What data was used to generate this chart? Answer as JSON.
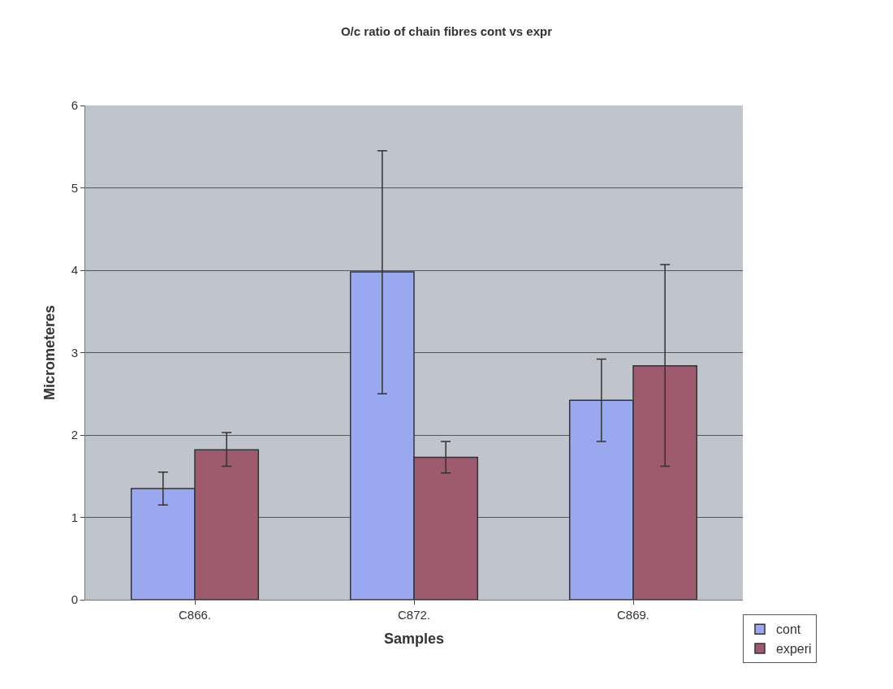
{
  "chart_data": {
    "type": "bar",
    "title": "O/c ratio of chain fibres cont vs expr",
    "xlabel": "Samples",
    "ylabel": "Micrometeres",
    "categories": [
      "C866.",
      "C872.",
      "C869."
    ],
    "series": [
      {
        "name": "cont",
        "color": "#9aa8f0",
        "values": [
          1.35,
          3.98,
          2.42
        ],
        "errors": [
          [
            1.15,
            1.55
          ],
          [
            2.5,
            5.45
          ],
          [
            1.92,
            2.92
          ]
        ]
      },
      {
        "name": "experi",
        "color": "#9e5a6e",
        "values": [
          1.82,
          1.73,
          2.84
        ],
        "errors": [
          [
            1.62,
            2.03
          ],
          [
            1.54,
            1.92
          ],
          [
            1.62,
            4.07
          ]
        ]
      }
    ],
    "ylim": [
      0,
      6
    ],
    "yticks": [
      0,
      1,
      2,
      3,
      4,
      5,
      6
    ],
    "grid": "y",
    "legend": "bottom right"
  }
}
